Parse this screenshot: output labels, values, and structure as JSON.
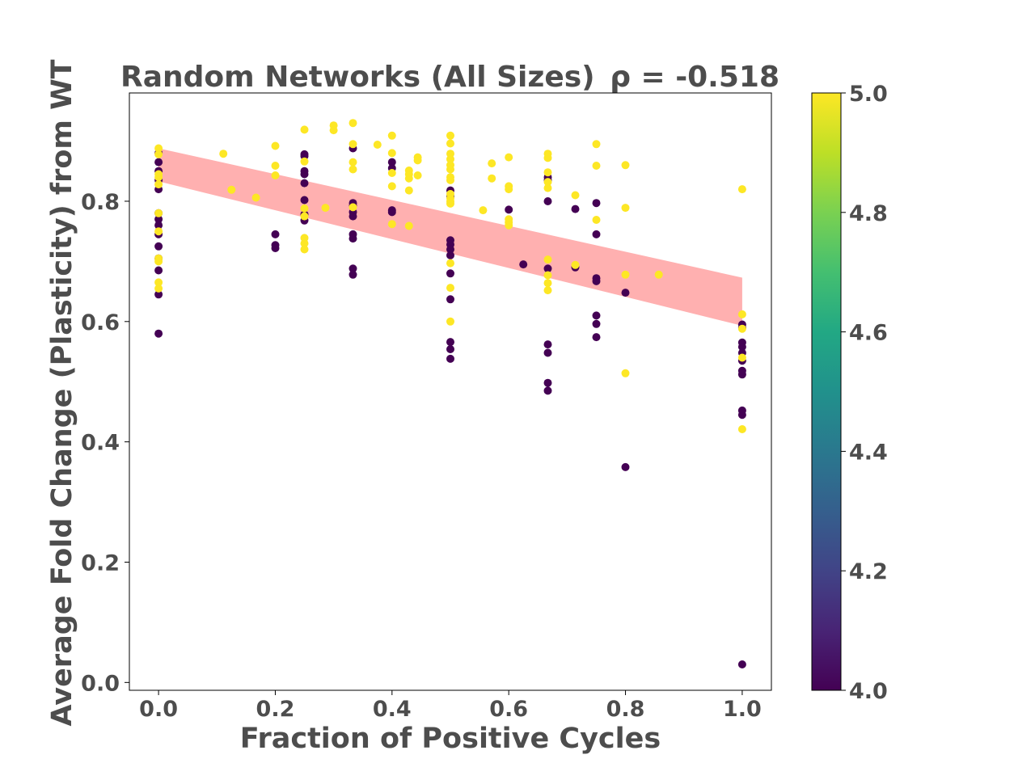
{
  "chart_data": {
    "type": "scatter",
    "title": "Random Networks (All Sizes)",
    "annotation": "ρ = -0.518",
    "xlabel": "Fraction of Positive Cycles",
    "ylabel": "Average Fold Change (Plasticity) from WT",
    "xlim": [
      -0.05,
      1.05
    ],
    "ylim": [
      -0.013,
      0.98
    ],
    "xticks": [
      0.0,
      0.2,
      0.4,
      0.6,
      0.8,
      1.0
    ],
    "xtick_labels": [
      "0.0",
      "0.2",
      "0.4",
      "0.6",
      "0.8",
      "1.0"
    ],
    "yticks": [
      0.0,
      0.2,
      0.4,
      0.6,
      0.8
    ],
    "ytick_labels": [
      "0.0",
      "0.2",
      "0.4",
      "0.6",
      "0.8"
    ],
    "grid": false,
    "colorbar": {
      "colormap": "viridis",
      "range": [
        4.0,
        5.0
      ],
      "ticks": [
        4.0,
        4.2,
        4.4,
        4.6,
        4.8,
        5.0
      ],
      "tick_labels": [
        "4.0",
        "4.2",
        "4.4",
        "4.6",
        "4.8",
        "5.0"
      ]
    },
    "colors": {
      "low": "#440154",
      "high": "#fde725",
      "band": "#ffb0b0",
      "text": "#4d4d4d"
    },
    "regression_band": {
      "x": [
        0.0,
        1.0
      ],
      "upper": [
        0.888,
        0.673
      ],
      "lower": [
        0.833,
        0.593
      ]
    },
    "series": [
      {
        "value": 4,
        "points": [
          [
            0.0,
            0.88
          ],
          [
            0.0,
            0.865
          ],
          [
            0.0,
            0.85
          ],
          [
            0.0,
            0.835
          ],
          [
            0.0,
            0.82
          ],
          [
            0.0,
            0.78
          ],
          [
            0.0,
            0.77
          ],
          [
            0.0,
            0.76
          ],
          [
            0.0,
            0.745
          ],
          [
            0.0,
            0.725
          ],
          [
            0.0,
            0.705
          ],
          [
            0.0,
            0.685
          ],
          [
            0.0,
            0.645
          ],
          [
            0.0,
            0.58
          ],
          [
            0.2,
            0.745
          ],
          [
            0.2,
            0.727
          ],
          [
            0.2,
            0.722
          ],
          [
            0.25,
            0.878
          ],
          [
            0.25,
            0.875
          ],
          [
            0.25,
            0.85
          ],
          [
            0.25,
            0.845
          ],
          [
            0.25,
            0.83
          ],
          [
            0.25,
            0.802
          ],
          [
            0.25,
            0.778
          ],
          [
            0.25,
            0.768
          ],
          [
            0.333,
            0.888
          ],
          [
            0.333,
            0.797
          ],
          [
            0.333,
            0.793
          ],
          [
            0.333,
            0.782
          ],
          [
            0.333,
            0.775
          ],
          [
            0.333,
            0.745
          ],
          [
            0.333,
            0.738
          ],
          [
            0.333,
            0.688
          ],
          [
            0.333,
            0.678
          ],
          [
            0.4,
            0.865
          ],
          [
            0.4,
            0.855
          ],
          [
            0.4,
            0.785
          ],
          [
            0.4,
            0.782
          ],
          [
            0.5,
            0.818
          ],
          [
            0.5,
            0.808
          ],
          [
            0.5,
            0.735
          ],
          [
            0.5,
            0.728
          ],
          [
            0.5,
            0.72
          ],
          [
            0.5,
            0.71
          ],
          [
            0.5,
            0.68
          ],
          [
            0.5,
            0.637
          ],
          [
            0.5,
            0.566
          ],
          [
            0.5,
            0.554
          ],
          [
            0.5,
            0.538
          ],
          [
            0.6,
            0.786
          ],
          [
            0.625,
            0.695
          ],
          [
            0.667,
            0.84
          ],
          [
            0.667,
            0.835
          ],
          [
            0.667,
            0.8
          ],
          [
            0.667,
            0.688
          ],
          [
            0.667,
            0.562
          ],
          [
            0.667,
            0.548
          ],
          [
            0.667,
            0.498
          ],
          [
            0.667,
            0.485
          ],
          [
            0.714,
            0.787
          ],
          [
            0.714,
            0.69
          ],
          [
            0.75,
            0.797
          ],
          [
            0.75,
            0.745
          ],
          [
            0.75,
            0.672
          ],
          [
            0.75,
            0.667
          ],
          [
            0.75,
            0.61
          ],
          [
            0.75,
            0.596
          ],
          [
            0.75,
            0.574
          ],
          [
            0.8,
            0.648
          ],
          [
            0.8,
            0.358
          ],
          [
            1.0,
            0.595
          ],
          [
            1.0,
            0.59
          ],
          [
            1.0,
            0.565
          ],
          [
            1.0,
            0.558
          ],
          [
            1.0,
            0.548
          ],
          [
            1.0,
            0.535
          ],
          [
            1.0,
            0.518
          ],
          [
            1.0,
            0.512
          ],
          [
            1.0,
            0.452
          ],
          [
            1.0,
            0.445
          ],
          [
            1.0,
            0.03
          ]
        ]
      },
      {
        "value": 5,
        "points": [
          [
            0.0,
            0.888
          ],
          [
            0.0,
            0.878
          ],
          [
            0.0,
            0.845
          ],
          [
            0.0,
            0.84
          ],
          [
            0.0,
            0.828
          ],
          [
            0.0,
            0.78
          ],
          [
            0.0,
            0.75
          ],
          [
            0.0,
            0.705
          ],
          [
            0.0,
            0.7
          ],
          [
            0.0,
            0.665
          ],
          [
            0.0,
            0.655
          ],
          [
            0.111,
            0.879
          ],
          [
            0.125,
            0.819
          ],
          [
            0.167,
            0.806
          ],
          [
            0.2,
            0.892
          ],
          [
            0.2,
            0.859
          ],
          [
            0.2,
            0.843
          ],
          [
            0.25,
            0.919
          ],
          [
            0.25,
            0.866
          ],
          [
            0.25,
            0.788
          ],
          [
            0.25,
            0.775
          ],
          [
            0.25,
            0.739
          ],
          [
            0.25,
            0.73
          ],
          [
            0.25,
            0.72
          ],
          [
            0.286,
            0.789
          ],
          [
            0.3,
            0.926
          ],
          [
            0.3,
            0.918
          ],
          [
            0.333,
            0.93
          ],
          [
            0.333,
            0.895
          ],
          [
            0.333,
            0.865
          ],
          [
            0.333,
            0.853
          ],
          [
            0.333,
            0.79
          ],
          [
            0.375,
            0.894
          ],
          [
            0.4,
            0.909
          ],
          [
            0.4,
            0.88
          ],
          [
            0.4,
            0.847
          ],
          [
            0.4,
            0.825
          ],
          [
            0.4,
            0.762
          ],
          [
            0.429,
            0.851
          ],
          [
            0.429,
            0.845
          ],
          [
            0.429,
            0.838
          ],
          [
            0.429,
            0.818
          ],
          [
            0.429,
            0.759
          ],
          [
            0.444,
            0.873
          ],
          [
            0.444,
            0.868
          ],
          [
            0.444,
            0.843
          ],
          [
            0.5,
            0.909
          ],
          [
            0.5,
            0.896
          ],
          [
            0.5,
            0.879
          ],
          [
            0.5,
            0.87
          ],
          [
            0.5,
            0.86
          ],
          [
            0.5,
            0.853
          ],
          [
            0.5,
            0.84
          ],
          [
            0.5,
            0.835
          ],
          [
            0.5,
            0.812
          ],
          [
            0.5,
            0.805
          ],
          [
            0.5,
            0.8
          ],
          [
            0.5,
            0.796
          ],
          [
            0.5,
            0.697
          ],
          [
            0.5,
            0.656
          ],
          [
            0.5,
            0.6
          ],
          [
            0.556,
            0.785
          ],
          [
            0.571,
            0.863
          ],
          [
            0.571,
            0.838
          ],
          [
            0.6,
            0.873
          ],
          [
            0.6,
            0.825
          ],
          [
            0.6,
            0.82
          ],
          [
            0.6,
            0.77
          ],
          [
            0.6,
            0.765
          ],
          [
            0.6,
            0.76
          ],
          [
            0.667,
            0.879
          ],
          [
            0.667,
            0.872
          ],
          [
            0.667,
            0.848
          ],
          [
            0.667,
            0.832
          ],
          [
            0.667,
            0.822
          ],
          [
            0.667,
            0.703
          ],
          [
            0.667,
            0.677
          ],
          [
            0.667,
            0.664
          ],
          [
            0.667,
            0.652
          ],
          [
            0.714,
            0.81
          ],
          [
            0.714,
            0.694
          ],
          [
            0.75,
            0.895
          ],
          [
            0.75,
            0.859
          ],
          [
            0.75,
            0.769
          ],
          [
            0.8,
            0.86
          ],
          [
            0.8,
            0.789
          ],
          [
            0.8,
            0.678
          ],
          [
            0.8,
            0.514
          ],
          [
            0.857,
            0.678
          ],
          [
            1.0,
            0.82
          ],
          [
            1.0,
            0.612
          ],
          [
            1.0,
            0.588
          ],
          [
            1.0,
            0.54
          ],
          [
            1.0,
            0.421
          ]
        ]
      }
    ]
  }
}
